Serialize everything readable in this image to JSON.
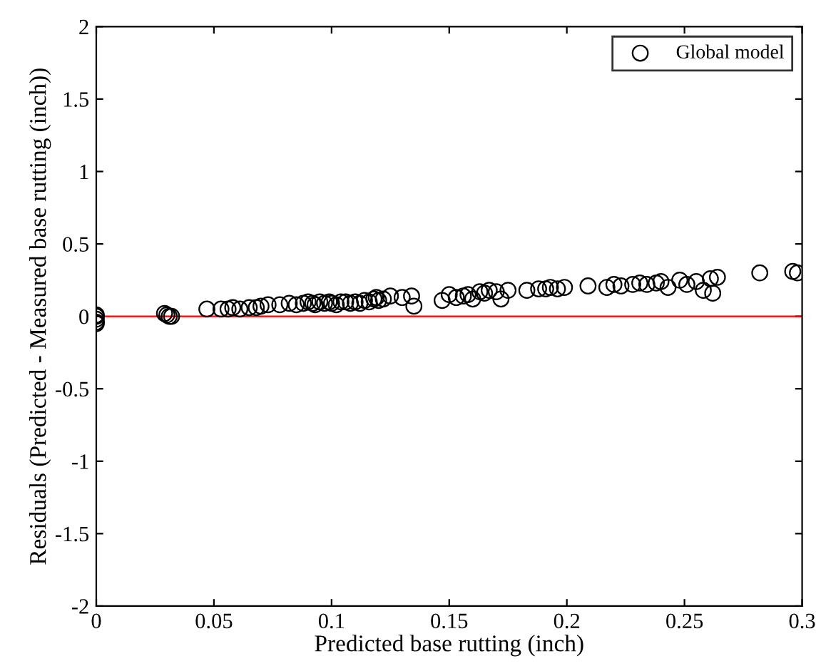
{
  "chart_data": {
    "type": "scatter",
    "xlabel": "Predicted base rutting (inch)",
    "ylabel": "Residuals (Predicted - Measured base rutting (inch))",
    "xlim": [
      0,
      0.3
    ],
    "ylim": [
      -2,
      2
    ],
    "xticks": [
      0,
      0.05,
      0.1,
      0.15,
      0.2,
      0.25,
      0.3
    ],
    "yticks": [
      -2,
      -1.5,
      -1,
      -0.5,
      0,
      0.5,
      1,
      1.5,
      2
    ],
    "marker": "circle",
    "legend": "top right",
    "grid": false,
    "series": [
      {
        "name": "Global model",
        "color": "#000000",
        "x": [
          0,
          0,
          0,
          0,
          0,
          0.029,
          0.03,
          0.031,
          0.032,
          0.047,
          0.053,
          0.056,
          0.058,
          0.061,
          0.065,
          0.068,
          0.07,
          0.073,
          0.078,
          0.082,
          0.085,
          0.088,
          0.09,
          0.092,
          0.093,
          0.095,
          0.097,
          0.099,
          0.1,
          0.102,
          0.104,
          0.106,
          0.108,
          0.11,
          0.112,
          0.114,
          0.116,
          0.118,
          0.119,
          0.12,
          0.122,
          0.125,
          0.13,
          0.134,
          0.135,
          0.147,
          0.15,
          0.153,
          0.156,
          0.158,
          0.16,
          0.163,
          0.165,
          0.167,
          0.17,
          0.172,
          0.175,
          0.183,
          0.188,
          0.191,
          0.193,
          0.196,
          0.199,
          0.209,
          0.217,
          0.22,
          0.223,
          0.228,
          0.231,
          0.234,
          0.238,
          0.24,
          0.243,
          0.248,
          0.251,
          0.255,
          0.258,
          0.261,
          0.262,
          0.264,
          0.282,
          0.296,
          0.298
        ],
        "values": [
          0,
          -0.02,
          -0.04,
          -0.05,
          0.01,
          0.02,
          0.01,
          0.0,
          0.0,
          0.05,
          0.05,
          0.05,
          0.06,
          0.05,
          0.06,
          0.06,
          0.07,
          0.08,
          0.08,
          0.09,
          0.08,
          0.09,
          0.1,
          0.09,
          0.08,
          0.1,
          0.09,
          0.1,
          0.09,
          0.08,
          0.1,
          0.1,
          0.09,
          0.1,
          0.09,
          0.11,
          0.1,
          0.12,
          0.13,
          0.11,
          0.12,
          0.14,
          0.13,
          0.14,
          0.07,
          0.11,
          0.15,
          0.13,
          0.14,
          0.15,
          0.12,
          0.17,
          0.16,
          0.18,
          0.17,
          0.12,
          0.18,
          0.18,
          0.19,
          0.19,
          0.2,
          0.19,
          0.2,
          0.21,
          0.2,
          0.22,
          0.21,
          0.22,
          0.23,
          0.22,
          0.23,
          0.24,
          0.2,
          0.25,
          0.22,
          0.24,
          0.18,
          0.26,
          0.16,
          0.27,
          0.3,
          0.31,
          0.3
        ]
      }
    ],
    "ref_lines": [
      {
        "axis": "y",
        "value": 0,
        "color": "#ff0000",
        "line_style": "solid"
      }
    ]
  }
}
